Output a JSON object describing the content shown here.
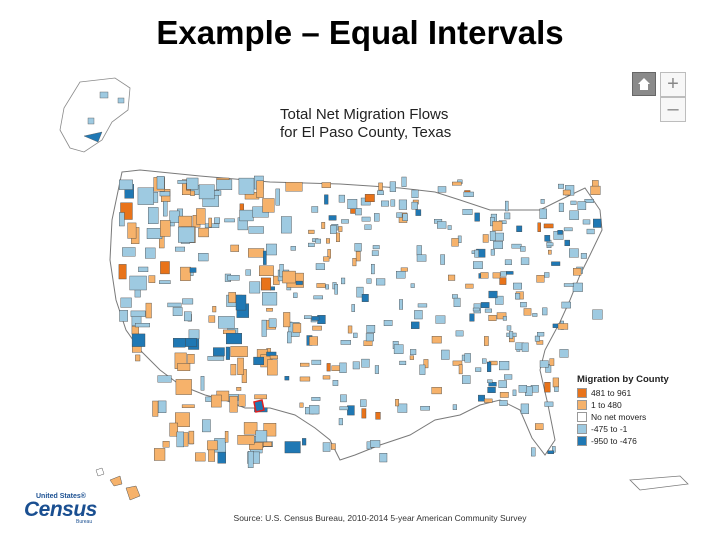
{
  "slide": {
    "title": "Example – Equal Intervals"
  },
  "map": {
    "title_line1": "Total Net Migration Flows",
    "title_line2": "for El Paso County, Texas"
  },
  "controls": {
    "home_icon": "home-icon",
    "zoom_in": "+",
    "zoom_out": "–"
  },
  "legend": {
    "title": "Migration by County",
    "items": [
      {
        "label": "481 to 961",
        "color": "#e8731a"
      },
      {
        "label": "1 to 480",
        "color": "#f6b26b"
      },
      {
        "label": "No net movers",
        "color": "#ffffff"
      },
      {
        "label": "-475 to -1",
        "color": "#9ecae1"
      },
      {
        "label": "-950 to -476",
        "color": "#1f78b4"
      }
    ]
  },
  "source": "Source: U.S. Census Bureau, 2010-2014 5-year American Community Survey",
  "logo": {
    "top": "United States®",
    "main": "Census",
    "sub": "Bureau"
  },
  "colors": {
    "border": "#7a7a7a",
    "highlight": "#e02020"
  }
}
